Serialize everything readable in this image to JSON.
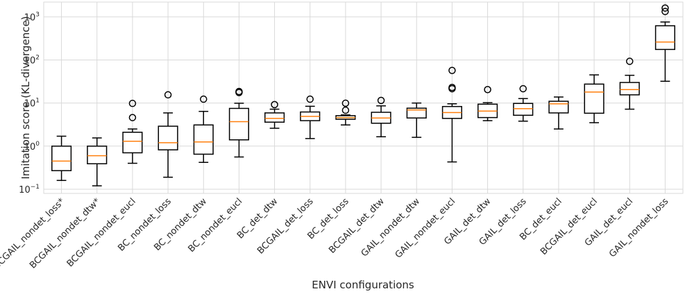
{
  "chart_data": {
    "type": "box",
    "title": "",
    "xlabel": "ENVI configurations",
    "ylabel": "Imitation score (KL-divergence)",
    "yscale": "log",
    "ylim": [
      0.08,
      2200
    ],
    "grid": true,
    "yticks": [
      {
        "value": 0.1,
        "base": "10",
        "exp": "−1"
      },
      {
        "value": 1,
        "base": "10",
        "exp": "0"
      },
      {
        "value": 10,
        "base": "10",
        "exp": "1"
      },
      {
        "value": 100,
        "base": "10",
        "exp": "2"
      },
      {
        "value": 1000,
        "base": "10",
        "exp": "3"
      }
    ],
    "colors": {
      "box": "#000000",
      "median": "#ff7f0e",
      "grid": "#d9d9d9"
    },
    "boxes": [
      {
        "label": "BCGAIL_nondet_loss*",
        "whislo": 0.16,
        "q1": 0.27,
        "med": 0.45,
        "q3": 1.0,
        "whishi": 1.7,
        "fliers": []
      },
      {
        "label": "BCGAIL_nondet_dtw*",
        "whislo": 0.12,
        "q1": 0.39,
        "med": 0.6,
        "q3": 1.0,
        "whishi": 1.55,
        "fliers": []
      },
      {
        "label": "BCGAIL_nondet_eucl",
        "whislo": 0.4,
        "q1": 0.7,
        "med": 1.3,
        "q3": 2.1,
        "whishi": 2.5,
        "fliers": [
          4.6,
          9.8
        ]
      },
      {
        "label": "BC_nondet_loss",
        "whislo": 0.19,
        "q1": 0.82,
        "med": 1.2,
        "q3": 2.9,
        "whishi": 5.9,
        "fliers": [
          15.5
        ]
      },
      {
        "label": "BC_nondet_dtw",
        "whislo": 0.42,
        "q1": 0.65,
        "med": 1.25,
        "q3": 3.1,
        "whishi": 6.4,
        "fliers": [
          12.3
        ]
      },
      {
        "label": "BC_nondet_eucl",
        "whislo": 0.56,
        "q1": 1.4,
        "med": 3.7,
        "q3": 7.5,
        "whishi": 9.9,
        "fliers": [
          17.5,
          18.5
        ]
      },
      {
        "label": "BC_det_dtw",
        "whislo": 2.6,
        "q1": 3.6,
        "med": 4.4,
        "q3": 5.9,
        "whishi": 7.2,
        "fliers": [
          9.2
        ]
      },
      {
        "label": "BCGAIL_det_loss",
        "whislo": 1.5,
        "q1": 3.9,
        "med": 4.9,
        "q3": 6.2,
        "whishi": 8.4,
        "fliers": [
          12.3
        ]
      },
      {
        "label": "BC_det_loss",
        "whislo": 3.1,
        "q1": 4.2,
        "med": 4.6,
        "q3": 5.1,
        "whishi": 5.3,
        "fliers": [
          6.8,
          9.9
        ]
      },
      {
        "label": "BCGAIL_det_dtw",
        "whislo": 1.65,
        "q1": 3.4,
        "med": 4.5,
        "q3": 6.1,
        "whishi": 8.6,
        "fliers": [
          11.5
        ]
      },
      {
        "label": "GAIL_nondet_dtw",
        "whislo": 1.6,
        "q1": 4.5,
        "med": 6.9,
        "q3": 7.6,
        "whishi": 10.0,
        "fliers": []
      },
      {
        "label": "GAIL_nondet_eucl",
        "whislo": 0.43,
        "q1": 4.4,
        "med": 6.0,
        "q3": 8.3,
        "whishi": 9.6,
        "fliers": [
          21.5,
          23.0,
          57.0
        ]
      },
      {
        "label": "GAIL_det_dtw",
        "whislo": 3.9,
        "q1": 4.6,
        "med": 6.5,
        "q3": 9.4,
        "whishi": 10.2,
        "fliers": [
          20.5
        ]
      },
      {
        "label": "GAIL_det_loss",
        "whislo": 3.8,
        "q1": 5.2,
        "med": 7.4,
        "q3": 9.8,
        "whishi": 12.7,
        "fliers": [
          21.5
        ]
      },
      {
        "label": "BC_det_eucl",
        "whislo": 2.5,
        "q1": 5.9,
        "med": 9.6,
        "q3": 11.0,
        "whishi": 13.8,
        "fliers": []
      },
      {
        "label": "BCGAIL_det_eucl",
        "whislo": 3.5,
        "q1": 5.8,
        "med": 18.0,
        "q3": 27.5,
        "whishi": 45.0,
        "fliers": []
      },
      {
        "label": "GAIL_det_eucl",
        "whislo": 7.2,
        "q1": 15.5,
        "med": 20.5,
        "q3": 30.0,
        "whishi": 44.0,
        "fliers": [
          93.0
        ]
      },
      {
        "label": "GAIL_nondet_loss",
        "whislo": 32.0,
        "q1": 175.0,
        "med": 260.0,
        "q3": 620.0,
        "whishi": 760.0,
        "fliers": [
          1330.0,
          1600.0
        ]
      }
    ]
  }
}
